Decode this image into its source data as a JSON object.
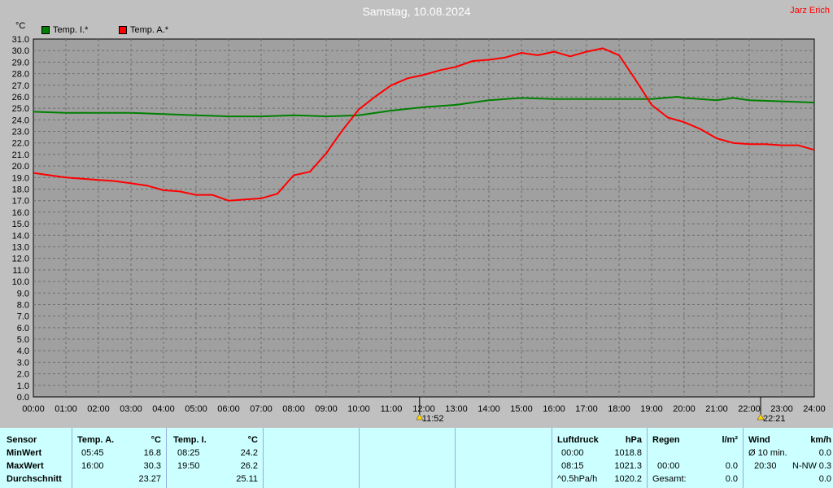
{
  "title": "Samstag, 10.08.2024",
  "author": "Jarz Erich",
  "unit": "°C",
  "legend": [
    {
      "label": "Temp. I.*",
      "color": "#008000"
    },
    {
      "label": "Temp. A.*",
      "color": "#ff0000"
    }
  ],
  "chart_data": {
    "type": "line",
    "ylabel": "°C",
    "ylim": [
      0,
      31
    ],
    "y_ticks": [
      "0.0",
      "1.0",
      "2.0",
      "3.0",
      "4.0",
      "5.0",
      "6.0",
      "7.0",
      "8.0",
      "9.0",
      "10.0",
      "11.0",
      "12.0",
      "13.0",
      "14.0",
      "15.0",
      "16.0",
      "17.0",
      "18.0",
      "19.0",
      "20.0",
      "21.0",
      "22.0",
      "23.0",
      "24.0",
      "25.0",
      "26.0",
      "27.0",
      "28.0",
      "29.0",
      "30.0",
      "31.0"
    ],
    "x_ticks": [
      "00:00",
      "01:00",
      "02:00",
      "03:00",
      "04:00",
      "05:00",
      "06:00",
      "07:00",
      "08:00",
      "09:00",
      "10:00",
      "11:00",
      "12:00",
      "13:00",
      "14:00",
      "15:00",
      "16:00",
      "17:00",
      "18:00",
      "19:00",
      "20:00",
      "21:00",
      "22:00",
      "23:00",
      "24:00"
    ],
    "grid": true,
    "markers": [
      {
        "label": "11:52",
        "hour": 11.87
      },
      {
        "label": "22:21",
        "hour": 22.35
      }
    ],
    "series": [
      {
        "name": "Temp. I.*",
        "color": "#008000",
        "x": [
          0,
          1,
          2,
          3,
          4,
          5,
          6,
          7,
          8,
          9,
          10,
          11,
          12,
          13,
          14,
          15,
          16,
          17,
          18,
          19,
          19.8,
          20,
          21,
          21.5,
          22,
          23,
          24
        ],
        "y": [
          24.7,
          24.6,
          24.6,
          24.6,
          24.5,
          24.4,
          24.3,
          24.3,
          24.4,
          24.3,
          24.4,
          24.8,
          25.1,
          25.3,
          25.7,
          25.9,
          25.8,
          25.8,
          25.8,
          25.8,
          26.0,
          25.9,
          25.7,
          25.9,
          25.7,
          25.6,
          25.5
        ]
      },
      {
        "name": "Temp. A.*",
        "color": "#ff0000",
        "x": [
          0,
          0.5,
          1,
          1.5,
          2,
          2.5,
          3,
          3.5,
          4,
          4.5,
          5,
          5.5,
          6,
          6.5,
          7,
          7.5,
          8,
          8.5,
          9,
          9.5,
          10,
          10.5,
          11,
          11.5,
          12,
          12.5,
          13,
          13.5,
          14,
          14.5,
          15,
          15.5,
          16,
          16.5,
          17,
          17.5,
          18,
          18.5,
          19,
          19.5,
          20,
          20.5,
          21,
          21.5,
          22,
          22.5,
          23,
          23.5,
          24
        ],
        "y": [
          19.4,
          19.2,
          19.0,
          18.9,
          18.8,
          18.7,
          18.5,
          18.3,
          17.9,
          17.8,
          17.5,
          17.5,
          17.0,
          17.1,
          17.2,
          17.6,
          19.2,
          19.5,
          21.1,
          23.1,
          24.9,
          26.0,
          27.0,
          27.6,
          27.9,
          28.3,
          28.6,
          29.1,
          29.2,
          29.4,
          29.8,
          29.6,
          29.9,
          29.5,
          29.9,
          30.2,
          29.6,
          27.5,
          25.3,
          24.2,
          23.8,
          23.2,
          22.4,
          22.0,
          21.9,
          21.9,
          21.8,
          21.8,
          21.4
        ]
      }
    ]
  },
  "stats": {
    "sensor": {
      "header": "Sensor",
      "min": "MinWert",
      "max": "MaxWert",
      "avg": "Durchschnitt"
    },
    "temp_a": {
      "header": "Temp. A.",
      "unit": "°C",
      "min_time": "05:45",
      "min_val": "16.8",
      "max_time": "16:00",
      "max_val": "30.3",
      "avg": "23.27"
    },
    "temp_i": {
      "header": "Temp. I.",
      "unit": "°C",
      "min_time": "08:25",
      "min_val": "24.2",
      "max_time": "19:50",
      "max_val": "26.2",
      "avg": "25.11"
    },
    "pressure": {
      "header": "Luftdruck",
      "unit": "hPa",
      "r1_time": "00:00",
      "r1_val": "1018.8",
      "r2_time": "08:15",
      "r2_val": "1021.3",
      "r3_label": "^0.5hPa/h",
      "r3_val": "1020.2"
    },
    "rain": {
      "header": "Regen",
      "unit": "l/m²",
      "r2_time": "00:00",
      "r2_val": "0.0",
      "r3_label": "Gesamt:",
      "r3_val": "0.0"
    },
    "wind": {
      "header": "Wind",
      "unit": "km/h",
      "r1_label": "Ø 10 min.",
      "r1_val": "0.0",
      "r2_time": "20:30",
      "r2_dir": "N-NW",
      "r2_val": "0.3",
      "r3_val": "0.0"
    }
  }
}
